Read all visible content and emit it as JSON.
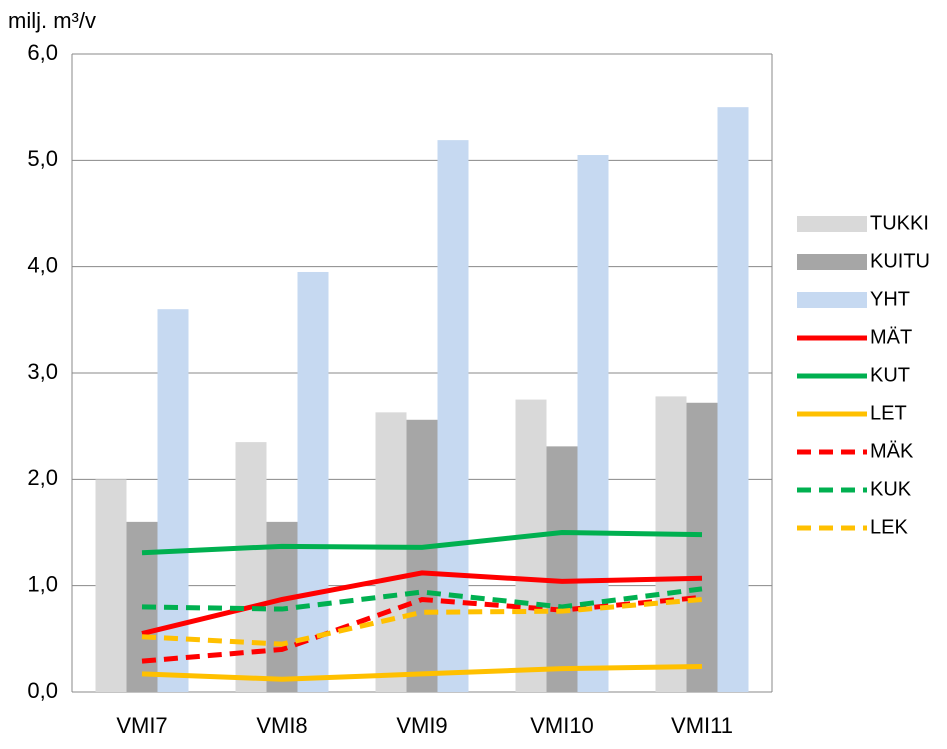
{
  "chart_data": {
    "type": "bar",
    "y_label": "milj. m³/v",
    "categories": [
      "VMI7",
      "VMI8",
      "VMI9",
      "VMI10",
      "VMI11"
    ],
    "series": [
      {
        "name": "TUKKI",
        "type": "bar",
        "color": "#d9d9d9",
        "values": [
          2.0,
          2.35,
          2.63,
          2.75,
          2.78
        ]
      },
      {
        "name": "KUITU",
        "type": "bar",
        "color": "#a6a6a6",
        "values": [
          1.6,
          1.6,
          2.56,
          2.31,
          2.72
        ]
      },
      {
        "name": "YHT",
        "type": "bar",
        "color": "#c6d9f1",
        "values": [
          3.6,
          3.95,
          5.19,
          5.05,
          5.5
        ]
      },
      {
        "name": "MÄT",
        "type": "line",
        "color": "#ff0000",
        "dashed": false,
        "values": [
          0.55,
          0.87,
          1.12,
          1.04,
          1.07
        ]
      },
      {
        "name": "KUT",
        "type": "line",
        "color": "#00b050",
        "dashed": false,
        "values": [
          1.31,
          1.37,
          1.36,
          1.5,
          1.48
        ]
      },
      {
        "name": "LET",
        "type": "line",
        "color": "#ffc000",
        "dashed": false,
        "values": [
          0.17,
          0.12,
          0.17,
          0.22,
          0.24
        ]
      },
      {
        "name": "MÄK",
        "type": "line",
        "color": "#ff0000",
        "dashed": true,
        "values": [
          0.29,
          0.4,
          0.87,
          0.77,
          0.89
        ]
      },
      {
        "name": "KUK",
        "type": "line",
        "color": "#00b050",
        "dashed": true,
        "values": [
          0.8,
          0.78,
          0.94,
          0.8,
          0.97
        ]
      },
      {
        "name": "LEK",
        "type": "line",
        "color": "#ffc000",
        "dashed": true,
        "values": [
          0.52,
          0.45,
          0.75,
          0.76,
          0.87
        ]
      }
    ],
    "ylim": [
      0,
      6
    ],
    "yticks": [
      {
        "value": 0,
        "label": "0,0"
      },
      {
        "value": 1,
        "label": "1,0"
      },
      {
        "value": 2,
        "label": "2,0"
      },
      {
        "value": 3,
        "label": "3,0"
      },
      {
        "value": 4,
        "label": "4,0"
      },
      {
        "value": 5,
        "label": "5,0"
      },
      {
        "value": 6,
        "label": "6,0"
      }
    ],
    "grid": true,
    "legend": "right"
  }
}
